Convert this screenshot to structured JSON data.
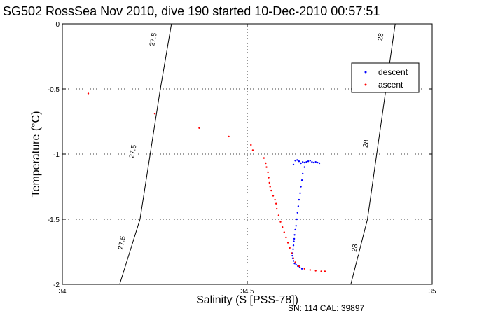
{
  "chart_data": {
    "type": "scatter",
    "title": "SG502 RossSea Nov 2010, dive 190 started 10-Dec-2010 00:57:51",
    "xlabel": "Salinity (S [PSS-78])",
    "ylabel": "Temperature (°C)",
    "xlim": [
      34,
      35
    ],
    "ylim": [
      -2,
      0
    ],
    "x_ticks": [
      34,
      34.5,
      35
    ],
    "x_tick_labels": [
      "34",
      "34.5",
      "35"
    ],
    "y_ticks": [
      -2,
      -1.5,
      -1,
      -0.5,
      0
    ],
    "y_tick_labels": [
      "-2",
      "-1.5",
      "-1",
      "-0.5",
      "0"
    ],
    "grid": true,
    "legend_position": "top-right",
    "footer": "SN: 114  CAL: 39897",
    "contours": [
      {
        "label": "27.5",
        "color": "#000000",
        "points": [
          [
            34.155,
            -2.0
          ],
          [
            34.21,
            -1.5
          ],
          [
            34.265,
            -0.5
          ],
          [
            34.295,
            0.0
          ]
        ],
        "label_positions": [
          [
            34.16,
            -1.68
          ],
          [
            34.19,
            -0.98
          ],
          [
            34.245,
            -0.12
          ]
        ]
      },
      {
        "label": "28",
        "color": "#000000",
        "points": [
          [
            34.78,
            -2.0
          ],
          [
            34.825,
            -1.5
          ],
          [
            34.875,
            -0.5
          ],
          [
            34.9,
            0.0
          ]
        ],
        "label_positions": [
          [
            34.79,
            -1.72
          ],
          [
            34.82,
            -0.92
          ],
          [
            34.86,
            -0.1
          ]
        ]
      }
    ],
    "series": [
      {
        "name": "descent",
        "color": "#0000ff",
        "marker": "dot",
        "points": [
          [
            34.695,
            -1.07
          ],
          [
            34.69,
            -1.065
          ],
          [
            34.685,
            -1.06
          ],
          [
            34.68,
            -1.065
          ],
          [
            34.675,
            -1.06
          ],
          [
            34.67,
            -1.05
          ],
          [
            34.665,
            -1.055
          ],
          [
            34.66,
            -1.06
          ],
          [
            34.655,
            -1.065
          ],
          [
            34.65,
            -1.06
          ],
          [
            34.645,
            -1.07
          ],
          [
            34.64,
            -1.055
          ],
          [
            34.635,
            -1.045
          ],
          [
            34.63,
            -1.05
          ],
          [
            34.625,
            -1.08
          ],
          [
            34.655,
            -1.1
          ],
          [
            34.65,
            -1.15
          ],
          [
            34.648,
            -1.2
          ],
          [
            34.645,
            -1.25
          ],
          [
            34.643,
            -1.3
          ],
          [
            34.64,
            -1.35
          ],
          [
            34.638,
            -1.4
          ],
          [
            34.636,
            -1.45
          ],
          [
            34.634,
            -1.5
          ],
          [
            34.632,
            -1.55
          ],
          [
            34.63,
            -1.58
          ],
          [
            34.628,
            -1.62
          ],
          [
            34.627,
            -1.65
          ],
          [
            34.626,
            -1.67
          ],
          [
            34.625,
            -1.7
          ],
          [
            34.624,
            -1.73
          ],
          [
            34.623,
            -1.76
          ],
          [
            34.622,
            -1.78
          ],
          [
            34.623,
            -1.8
          ],
          [
            34.625,
            -1.82
          ],
          [
            34.628,
            -1.84
          ],
          [
            34.632,
            -1.85
          ],
          [
            34.637,
            -1.86
          ],
          [
            34.642,
            -1.87
          ],
          [
            34.648,
            -1.88
          ]
        ]
      },
      {
        "name": "ascent",
        "color": "#ff0000",
        "marker": "dot",
        "points": [
          [
            34.07,
            -0.535
          ],
          [
            34.25,
            -0.69
          ],
          [
            34.37,
            -0.8
          ],
          [
            34.45,
            -0.865
          ],
          [
            34.51,
            -0.93
          ],
          [
            34.515,
            -0.97
          ],
          [
            34.545,
            -1.03
          ],
          [
            34.55,
            -1.07
          ],
          [
            34.552,
            -1.1
          ],
          [
            34.556,
            -1.14
          ],
          [
            34.558,
            -1.18
          ],
          [
            34.56,
            -1.22
          ],
          [
            34.562,
            -1.25
          ],
          [
            34.565,
            -1.28
          ],
          [
            34.57,
            -1.32
          ],
          [
            34.575,
            -1.35
          ],
          [
            34.578,
            -1.38
          ],
          [
            34.58,
            -1.42
          ],
          [
            34.585,
            -1.47
          ],
          [
            34.59,
            -1.52
          ],
          [
            34.595,
            -1.56
          ],
          [
            34.6,
            -1.6
          ],
          [
            34.605,
            -1.64
          ],
          [
            34.61,
            -1.68
          ],
          [
            34.615,
            -1.72
          ],
          [
            34.62,
            -1.76
          ],
          [
            34.625,
            -1.8
          ],
          [
            34.63,
            -1.83
          ],
          [
            34.64,
            -1.86
          ],
          [
            34.655,
            -1.88
          ],
          [
            34.67,
            -1.89
          ],
          [
            34.685,
            -1.895
          ],
          [
            34.7,
            -1.9
          ],
          [
            34.71,
            -1.9
          ]
        ]
      }
    ]
  }
}
